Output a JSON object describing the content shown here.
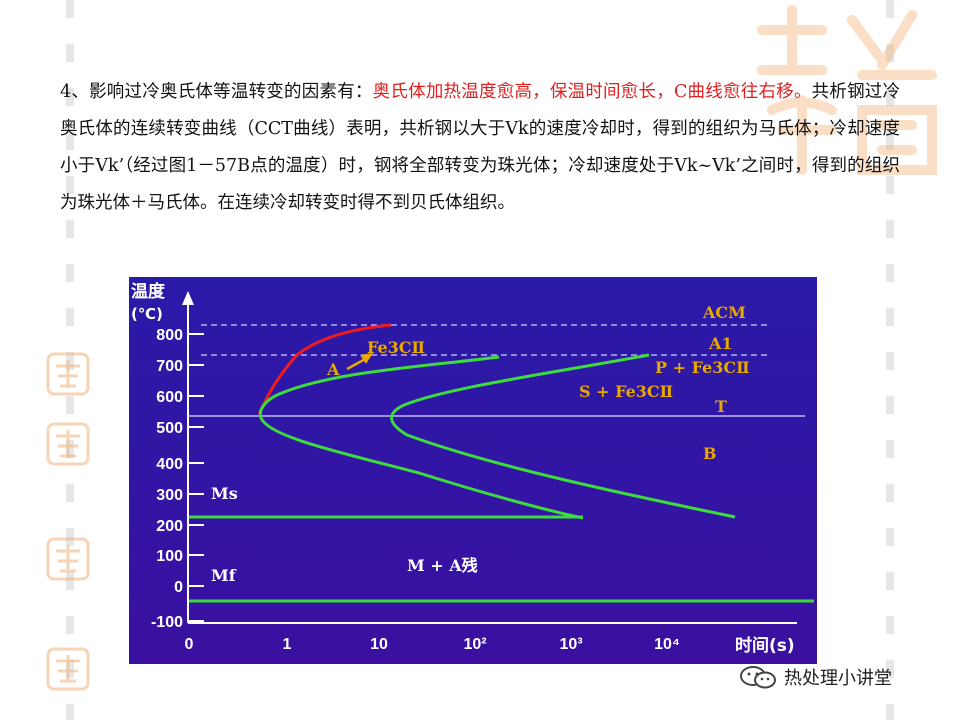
{
  "paragraph": {
    "lead": "4、影响过冷奥氏体等温转变的因素有：",
    "highlight": "奥氏体加热温度愈高，保温时间愈长，C曲线愈往右移。",
    "rest": "共析钢过冷奥氏体的连续转变曲线（CCT曲线）表明，共析钢以大于Vk的速度冷却时，得到的组织为马氏体；冷却速度小于Vk’（经过图1－57B点的温度）时，钢将全部转变为珠光体；冷却速度处于Vk~Vk’之间时，得到的组织为珠光体＋马氏体。在连续冷却转变时得不到贝氏体组织。"
  },
  "figure": {
    "y_axis_title": "温度",
    "y_axis_unit": "(℃)",
    "x_axis_title": "时间(s)",
    "y_ticks": [
      "800",
      "700",
      "600",
      "500",
      "400",
      "300",
      "200",
      "100",
      "0",
      "-100"
    ],
    "x_ticks": [
      "0",
      "1",
      "10",
      "10²",
      "10³",
      "10⁴"
    ],
    "line_labels": {
      "acm": "ACM",
      "a1": "A1",
      "t": "T",
      "ms": "Ms",
      "mf": "Mf"
    },
    "region_labels": {
      "a": "A",
      "fe3c": "Fe3CⅡ",
      "p_fe3c": "P + Fe3CⅡ",
      "s_fe3c": "S + Fe3CⅡ",
      "b": "B",
      "m_a": "M + A残"
    },
    "colors": {
      "background": "#3c14a6",
      "curve": "#3ddc3d",
      "red_curve": "#ee1c1c",
      "label": "#e8a800",
      "axis_text": "#ffffff"
    }
  },
  "source": {
    "name": "热处理小讲堂",
    "icon": "wechat-icon"
  },
  "watermark": {
    "icon": "seal-watermark-icon"
  }
}
